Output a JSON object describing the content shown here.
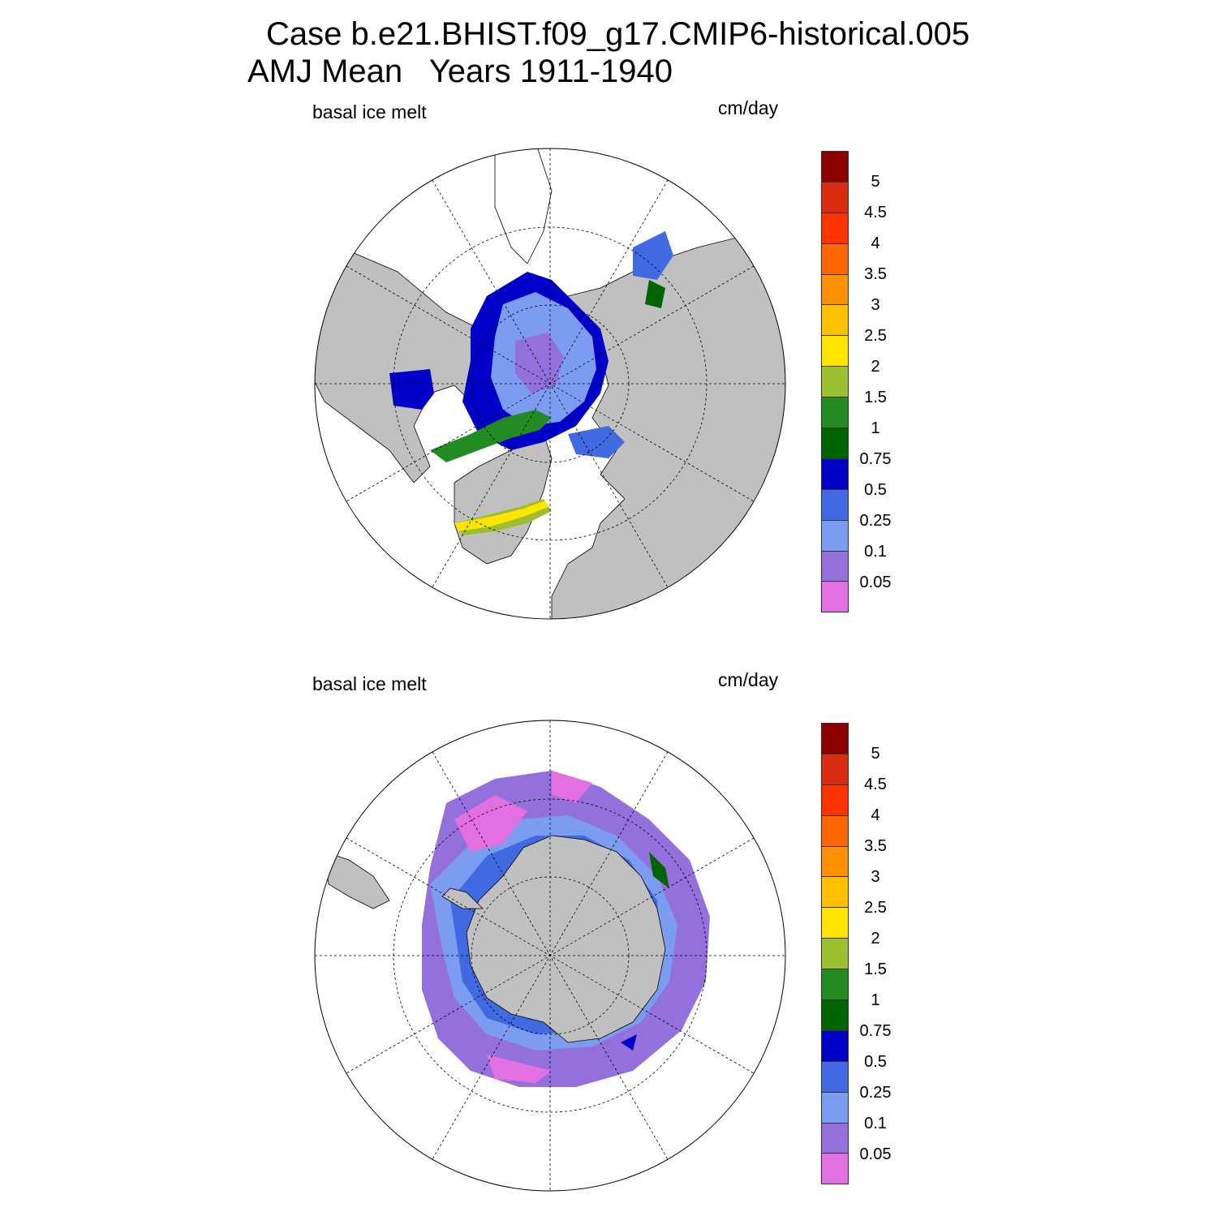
{
  "title_line1": "Case b.e21.BHIST.f09_g17.CMIP6-historical.005",
  "title_line2": "AMJ Mean   Years 1911-1940",
  "panels": [
    {
      "variable": "basal ice melt",
      "units": "cm/day",
      "hemisphere": "north"
    },
    {
      "variable": "basal ice melt",
      "units": "cm/day",
      "hemisphere": "south"
    }
  ],
  "colorbar": {
    "levels": [
      "5",
      "4.5",
      "4",
      "3.5",
      "3",
      "2.5",
      "2",
      "1.5",
      "1",
      "0.75",
      "0.5",
      "0.25",
      "0.1",
      "0.05"
    ],
    "colors": [
      "#8b0000",
      "#d92b10",
      "#ff3300",
      "#ff6600",
      "#ff9000",
      "#ffc000",
      "#ffe400",
      "#9cbf30",
      "#228b22",
      "#006400",
      "#0000c8",
      "#4169e1",
      "#7b9cf0",
      "#9370db",
      "#e370e0"
    ]
  },
  "map_style": {
    "land": "#c0c0c0",
    "ocean": "#ffffff",
    "grid": "dashed lat/lon grid"
  }
}
